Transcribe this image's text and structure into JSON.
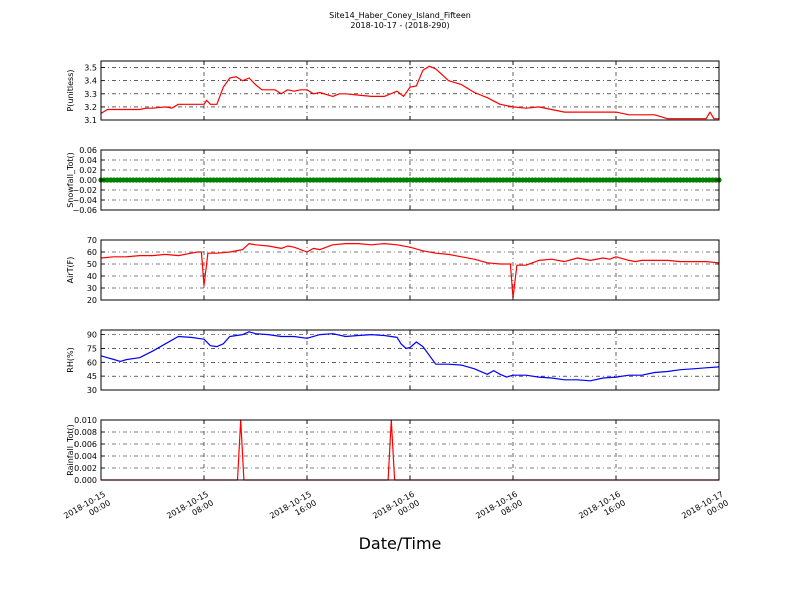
{
  "title": "Site14_Haber_Coney_Island_Fifteen",
  "subtitle": "2018-10-17 - (2018-290)",
  "xlabel": "Date/Time",
  "x_ticks": [
    {
      "value": 0,
      "line1": "2018-10-15",
      "line2": "00:00"
    },
    {
      "value": 8,
      "line1": "2018-10-15",
      "line2": "08:00"
    },
    {
      "value": 16,
      "line1": "2018-10-15",
      "line2": "16:00"
    },
    {
      "value": 24,
      "line1": "2018-10-16",
      "line2": "00:00"
    },
    {
      "value": 32,
      "line1": "2018-10-16",
      "line2": "08:00"
    },
    {
      "value": 40,
      "line1": "2018-10-16",
      "line2": "16:00"
    },
    {
      "value": 48,
      "line1": "2018-10-17",
      "line2": "00:00"
    }
  ],
  "chart_data": [
    {
      "type": "line",
      "ylabel": "P(unitless)",
      "color": "#ff0000",
      "ylim": [
        3.1,
        3.55
      ],
      "yticks": [
        3.1,
        3.2,
        3.3,
        3.4,
        3.5
      ],
      "ytick_labels": [
        "3.1",
        "3.2",
        "3.3",
        "3.4",
        "3.5"
      ],
      "grid": true,
      "x": [
        0,
        0.5,
        2,
        3,
        3.5,
        4,
        5,
        5.5,
        6,
        7,
        8,
        8.2,
        8.5,
        9,
        9.5,
        10,
        10.5,
        11,
        11.5,
        12,
        12.5,
        13,
        13.5,
        14,
        14.5,
        15,
        15.5,
        16,
        16.5,
        17,
        18,
        18.5,
        19,
        20,
        21,
        22,
        23,
        23.5,
        24,
        24.5,
        25,
        25.5,
        26,
        27,
        28,
        29,
        30,
        31,
        32,
        33,
        34,
        35,
        36,
        37,
        38,
        39,
        40,
        41,
        42,
        43,
        44,
        45,
        46,
        47,
        47.3,
        47.6,
        48
      ],
      "y": [
        3.15,
        3.18,
        3.18,
        3.18,
        3.19,
        3.19,
        3.2,
        3.19,
        3.22,
        3.22,
        3.22,
        3.25,
        3.22,
        3.22,
        3.35,
        3.42,
        3.43,
        3.4,
        3.42,
        3.37,
        3.33,
        3.33,
        3.33,
        3.3,
        3.33,
        3.32,
        3.33,
        3.33,
        3.3,
        3.31,
        3.28,
        3.3,
        3.3,
        3.29,
        3.28,
        3.28,
        3.32,
        3.28,
        3.35,
        3.36,
        3.48,
        3.51,
        3.49,
        3.4,
        3.37,
        3.31,
        3.27,
        3.22,
        3.2,
        3.19,
        3.2,
        3.18,
        3.16,
        3.16,
        3.16,
        3.16,
        3.16,
        3.14,
        3.14,
        3.14,
        3.11,
        3.11,
        3.11,
        3.11,
        3.16,
        3.11,
        3.11
      ]
    },
    {
      "type": "scatter",
      "ylabel": "Snowfall_Tot()",
      "color": "#008000",
      "ylim": [
        -0.06,
        0.06
      ],
      "yticks": [
        -0.06,
        -0.04,
        -0.02,
        0.0,
        0.02,
        0.04,
        0.06
      ],
      "ytick_labels": [
        "−0.06",
        "−0.04",
        "−0.02",
        "0.00",
        "0.02",
        "0.04",
        "0.06"
      ],
      "grid": true,
      "x_start": 0,
      "x_end": 48,
      "x_step": 0.25,
      "value": 0.0
    },
    {
      "type": "line",
      "ylabel": "AirT(F)",
      "color": "#ff0000",
      "ylim": [
        20,
        70
      ],
      "yticks": [
        20,
        30,
        40,
        50,
        60,
        70
      ],
      "ytick_labels": [
        "20",
        "30",
        "40",
        "50",
        "60",
        "70"
      ],
      "grid": true,
      "x": [
        0,
        1,
        2,
        3,
        4,
        5,
        6,
        7,
        7.5,
        7.8,
        8,
        8.3,
        9,
        10,
        11,
        11.5,
        12,
        13,
        14,
        14.5,
        15,
        16,
        16.5,
        17,
        18,
        19,
        20,
        21,
        22,
        23,
        24,
        25,
        26,
        27,
        28,
        29,
        30,
        31,
        31.5,
        31.8,
        32,
        32.3,
        33,
        34,
        35,
        36,
        37,
        38,
        39,
        39.5,
        40,
        41,
        41.5,
        42,
        43,
        44,
        45,
        46,
        47,
        48
      ],
      "y": [
        55,
        56,
        56,
        57,
        57,
        58,
        57,
        59,
        60,
        60,
        32,
        59,
        59,
        60,
        62,
        67,
        66,
        65,
        63,
        65,
        64,
        60,
        63,
        62,
        66,
        67,
        67,
        66,
        67,
        66,
        64,
        61,
        59,
        58,
        56,
        54,
        51,
        50,
        50,
        50,
        22,
        49,
        49,
        53,
        54,
        52,
        55,
        53,
        55,
        54,
        56,
        53,
        52,
        53,
        53,
        53,
        52,
        52,
        52,
        51
      ]
    },
    {
      "type": "line",
      "ylabel": "RH(%)",
      "color": "#0000ff",
      "ylim": [
        30,
        95
      ],
      "yticks": [
        30,
        45,
        60,
        75,
        90
      ],
      "ytick_labels": [
        "30",
        "45",
        "60",
        "75",
        "90"
      ],
      "grid": true,
      "x": [
        0,
        0.5,
        1,
        1.5,
        2,
        3,
        4,
        5,
        6,
        7,
        8,
        8.5,
        9,
        9.5,
        10,
        11,
        11.5,
        12,
        13,
        14,
        15,
        16,
        17,
        18,
        19,
        20,
        21,
        22,
        23,
        23.3,
        23.7,
        24,
        24.5,
        25,
        26,
        27,
        28,
        29,
        30,
        30.5,
        31,
        31.5,
        32,
        33,
        34,
        35,
        36,
        37,
        38,
        39,
        40,
        41,
        42,
        43,
        44,
        45,
        46,
        47,
        48
      ],
      "y": [
        67,
        65,
        63,
        61,
        63,
        65,
        72,
        80,
        88,
        87,
        85,
        78,
        77,
        80,
        88,
        90,
        93,
        91,
        90,
        88,
        88,
        86,
        90,
        91,
        88,
        89,
        90,
        89,
        87,
        80,
        75,
        76,
        82,
        77,
        58,
        58,
        57,
        53,
        47,
        51,
        47,
        44,
        46,
        46,
        44,
        43,
        41,
        41,
        40,
        43,
        44,
        46,
        46,
        49,
        50,
        52,
        53,
        54,
        55
      ]
    },
    {
      "type": "line",
      "ylabel": "Rainfall_Tot()",
      "color": "#ff0000",
      "ylim": [
        0,
        0.01
      ],
      "yticks": [
        0,
        0.002,
        0.004,
        0.006,
        0.008,
        0.01
      ],
      "ytick_labels": [
        "0.000",
        "0.002",
        "0.004",
        "0.006",
        "0.008",
        "0.010"
      ],
      "grid": true,
      "x": [
        0,
        10.6,
        10.85,
        11.1,
        22.3,
        22.55,
        22.8,
        48
      ],
      "y": [
        0,
        0,
        0.01,
        0,
        0,
        0.01,
        0,
        0
      ]
    }
  ]
}
